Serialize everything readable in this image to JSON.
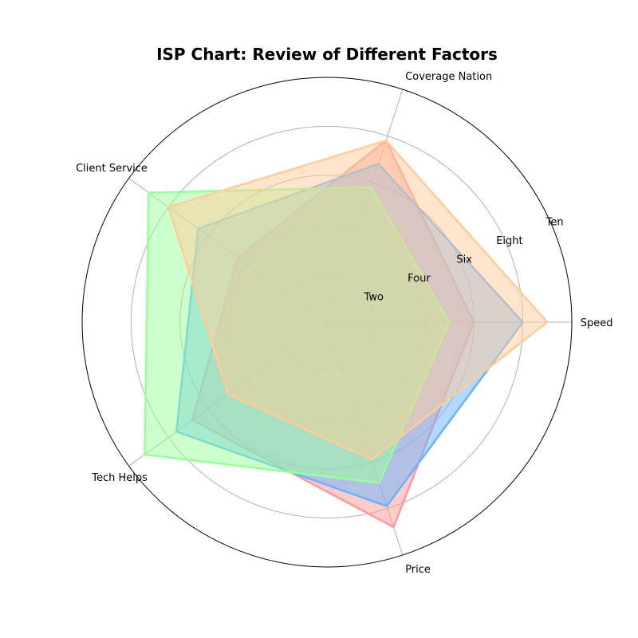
{
  "chart_data": {
    "type": "radar",
    "title": "ISP Chart: Review of Different Factors",
    "categories": [
      "Speed",
      "Coverage Nation",
      "Client Service",
      "Tech Helps",
      "Price"
    ],
    "radial_ticks": [
      {
        "value": 2,
        "label": "Two"
      },
      {
        "value": 4,
        "label": "Four"
      },
      {
        "value": 6,
        "label": "Six"
      },
      {
        "value": 8,
        "label": "Eight"
      },
      {
        "value": 10,
        "label": "Ten"
      }
    ],
    "rlim": [
      0,
      10
    ],
    "grid": true,
    "series": [
      {
        "values": [
          6.0,
          7.8,
          4.5,
          6.8,
          8.8
        ],
        "color": "#ff9999"
      },
      {
        "values": [
          8.0,
          6.8,
          6.5,
          7.6,
          7.9
        ],
        "color": "#66b3ff"
      },
      {
        "values": [
          5.0,
          5.8,
          9.0,
          9.2,
          6.9
        ],
        "color": "#99ff99"
      },
      {
        "values": [
          9.0,
          7.8,
          8.0,
          5.0,
          5.9
        ],
        "color": "#ffcc99"
      }
    ]
  }
}
